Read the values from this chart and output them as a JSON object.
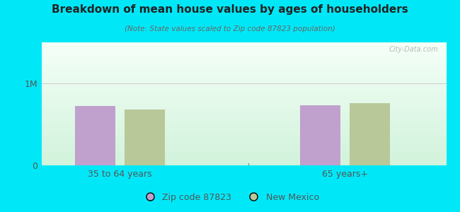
{
  "title": "Breakdown of mean house values by ages of householders",
  "subtitle": "(Note: State values scaled to Zip code 87823 population)",
  "groups": [
    "35 to 64 years",
    "65 years+"
  ],
  "series": [
    "Zip code 87823",
    "New Mexico"
  ],
  "values": [
    [
      720000,
      680000
    ],
    [
      730000,
      760000
    ]
  ],
  "bar_colors": [
    "#c0a0cc",
    "#b8c898"
  ],
  "ylim": [
    0,
    1500000
  ],
  "ytick_labels": [
    "0",
    "1M"
  ],
  "ytick_vals": [
    0,
    1000000
  ],
  "outer_bg": "#00e8f8",
  "plot_bg_top": "#f5fffa",
  "plot_bg_bottom": "#d0f0d8",
  "title_color": "#222222",
  "subtitle_color": "#666666",
  "tick_color": "#555555",
  "grid_color": "#cccccc",
  "watermark": "City-Data.com",
  "bar_width": 0.18,
  "x_positions": [
    0.3,
    1.3
  ],
  "xlim": [
    -0.05,
    1.75
  ]
}
